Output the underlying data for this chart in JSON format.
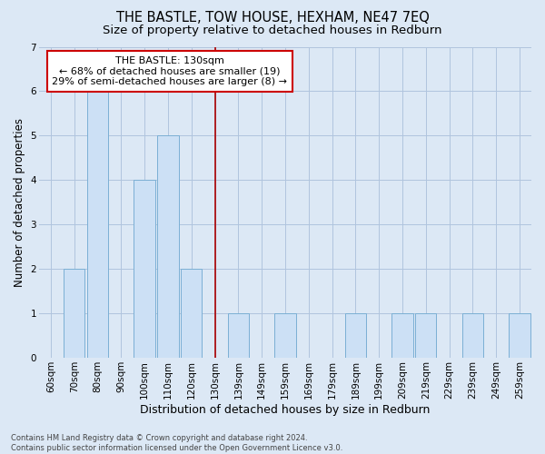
{
  "title": "THE BASTLE, TOW HOUSE, HEXHAM, NE47 7EQ",
  "subtitle": "Size of property relative to detached houses in Redburn",
  "xlabel": "Distribution of detached houses by size in Redburn",
  "ylabel": "Number of detached properties",
  "categories": [
    "60sqm",
    "70sqm",
    "80sqm",
    "90sqm",
    "100sqm",
    "110sqm",
    "120sqm",
    "130sqm",
    "139sqm",
    "149sqm",
    "159sqm",
    "169sqm",
    "179sqm",
    "189sqm",
    "199sqm",
    "209sqm",
    "219sqm",
    "229sqm",
    "239sqm",
    "249sqm",
    "259sqm"
  ],
  "values": [
    0,
    2,
    6,
    0,
    4,
    5,
    2,
    0,
    1,
    0,
    1,
    0,
    0,
    1,
    0,
    1,
    1,
    0,
    1,
    0,
    1
  ],
  "bar_color": "#cce0f5",
  "bar_edge_color": "#7bafd4",
  "highlight_index": 7,
  "highlight_line_color": "#aa0000",
  "annotation_text": "THE BASTLE: 130sqm\n← 68% of detached houses are smaller (19)\n29% of semi-detached houses are larger (8) →",
  "annotation_box_color": "#ffffff",
  "annotation_box_edge_color": "#cc0000",
  "ylim": [
    0,
    7
  ],
  "yticks": [
    0,
    1,
    2,
    3,
    4,
    5,
    6,
    7
  ],
  "grid_color": "#b0c4de",
  "background_color": "#dce8f5",
  "title_fontsize": 10.5,
  "subtitle_fontsize": 9.5,
  "tick_fontsize": 7.5,
  "ylabel_fontsize": 8.5,
  "xlabel_fontsize": 9,
  "annotation_fontsize": 8,
  "footer_line1": "Contains HM Land Registry data © Crown copyright and database right 2024.",
  "footer_line2": "Contains public sector information licensed under the Open Government Licence v3.0.",
  "footer_fontsize": 6.0
}
